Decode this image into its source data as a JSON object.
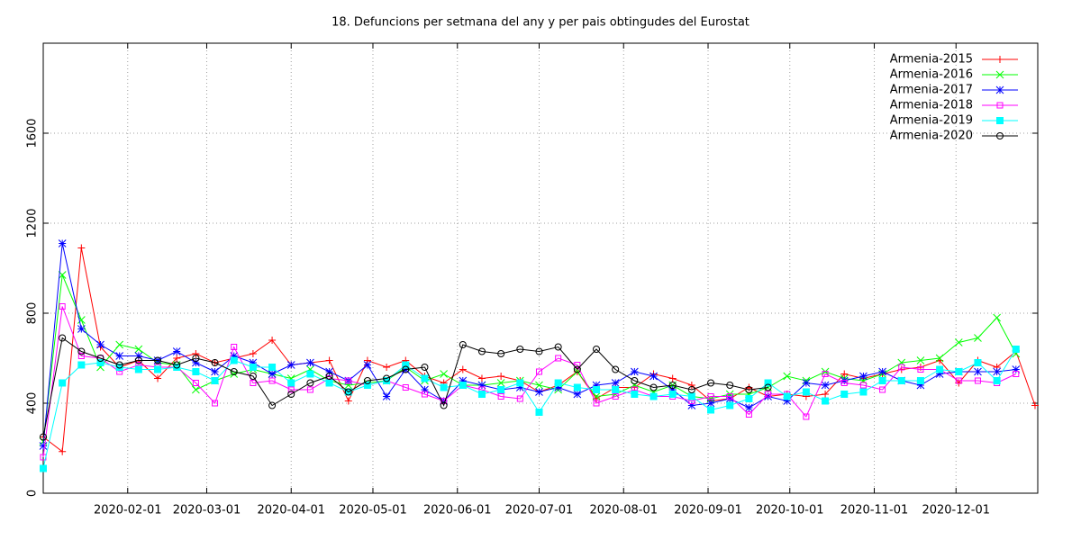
{
  "chart_data": {
    "type": "line",
    "title": "18. Defuncions per setmana del any y per pais obtingudes del Eurostat",
    "x": [
      "2020-01-01",
      "2020-01-08",
      "2020-01-15",
      "2020-01-22",
      "2020-01-29",
      "2020-02-05",
      "2020-02-12",
      "2020-02-19",
      "2020-02-26",
      "2020-03-04",
      "2020-03-11",
      "2020-03-18",
      "2020-03-25",
      "2020-04-01",
      "2020-04-08",
      "2020-04-15",
      "2020-04-22",
      "2020-04-29",
      "2020-05-06",
      "2020-05-13",
      "2020-05-20",
      "2020-05-27",
      "2020-06-03",
      "2020-06-10",
      "2020-06-17",
      "2020-06-24",
      "2020-07-01",
      "2020-07-08",
      "2020-07-15",
      "2020-07-22",
      "2020-07-29",
      "2020-08-05",
      "2020-08-12",
      "2020-08-19",
      "2020-08-26",
      "2020-09-02",
      "2020-09-09",
      "2020-09-16",
      "2020-09-23",
      "2020-09-30",
      "2020-10-07",
      "2020-10-14",
      "2020-10-21",
      "2020-10-28",
      "2020-11-04",
      "2020-11-11",
      "2020-11-18",
      "2020-11-25",
      "2020-12-02",
      "2020-12-09",
      "2020-12-16",
      "2020-12-23",
      "2020-12-30"
    ],
    "series": [
      {
        "name": "Armenia-2015",
        "color": "#ff0000",
        "marker": "plus",
        "values": [
          250,
          185,
          1090,
          650,
          560,
          590,
          510,
          600,
          620,
          580,
          600,
          620,
          680,
          570,
          580,
          590,
          410,
          590,
          560,
          590,
          520,
          490,
          550,
          510,
          520,
          500,
          450,
          480,
          540,
          420,
          470,
          470,
          530,
          510,
          480,
          410,
          420,
          470,
          430,
          440,
          430,
          440,
          530,
          510,
          530,
          550,
          560,
          590,
          490,
          590,
          560,
          630,
          390
        ]
      },
      {
        "name": "Armenia-2016",
        "color": "#00ff00",
        "marker": "cross",
        "values": [
          230,
          970,
          770,
          560,
          660,
          640,
          580,
          570,
          460,
          500,
          530,
          550,
          530,
          510,
          550,
          500,
          480,
          490,
          500,
          560,
          500,
          530,
          480,
          480,
          490,
          500,
          480,
          460,
          540,
          430,
          440,
          480,
          450,
          480,
          430,
          420,
          440,
          440,
          470,
          520,
          500,
          540,
          510,
          500,
          530,
          580,
          590,
          600,
          670,
          690,
          780,
          620,
          null
        ]
      },
      {
        "name": "Armenia-2017",
        "color": "#0000ff",
        "marker": "star",
        "values": [
          210,
          1110,
          730,
          660,
          610,
          610,
          590,
          630,
          580,
          540,
          610,
          580,
          530,
          570,
          580,
          540,
          500,
          570,
          430,
          550,
          460,
          410,
          500,
          480,
          460,
          470,
          450,
          470,
          440,
          480,
          490,
          540,
          520,
          460,
          390,
          400,
          420,
          380,
          430,
          410,
          490,
          480,
          500,
          520,
          540,
          500,
          480,
          530,
          540,
          540,
          540,
          550,
          null
        ]
      },
      {
        "name": "Armenia-2018",
        "color": "#ff00ff",
        "marker": "square",
        "values": [
          160,
          830,
          610,
          600,
          540,
          570,
          560,
          560,
          490,
          400,
          650,
          490,
          500,
          460,
          460,
          510,
          500,
          480,
          500,
          470,
          440,
          410,
          480,
          460,
          430,
          420,
          540,
          600,
          570,
          400,
          430,
          460,
          430,
          430,
          410,
          430,
          430,
          350,
          440,
          440,
          340,
          530,
          490,
          480,
          460,
          560,
          550,
          550,
          500,
          500,
          490,
          530,
          null
        ]
      },
      {
        "name": "Armenia-2019",
        "color": "#00ffff",
        "marker": "filled-square",
        "values": [
          110,
          490,
          570,
          580,
          560,
          550,
          550,
          560,
          540,
          500,
          590,
          560,
          560,
          490,
          530,
          490,
          450,
          480,
          500,
          570,
          510,
          470,
          480,
          440,
          460,
          490,
          360,
          490,
          470,
          460,
          460,
          440,
          430,
          440,
          430,
          370,
          390,
          420,
          490,
          430,
          450,
          410,
          440,
          450,
          500,
          500,
          500,
          550,
          540,
          580,
          500,
          640,
          null
        ]
      },
      {
        "name": "Armenia-2020",
        "color": "#000000",
        "marker": "circle",
        "values": [
          250,
          690,
          630,
          600,
          570,
          590,
          590,
          570,
          600,
          580,
          540,
          520,
          390,
          440,
          490,
          520,
          450,
          500,
          510,
          550,
          560,
          390,
          660,
          630,
          620,
          640,
          630,
          650,
          550,
          640,
          550,
          500,
          470,
          480,
          460,
          490,
          480,
          460,
          470,
          null,
          null,
          null,
          null,
          null,
          null,
          null,
          null,
          null,
          null,
          null,
          null,
          null,
          null
        ]
      }
    ],
    "xlim": [
      "2020-01-01",
      "2020-12-31"
    ],
    "xticks": [
      "2020-02-01",
      "2020-03-01",
      "2020-04-01",
      "2020-05-01",
      "2020-06-01",
      "2020-07-01",
      "2020-08-01",
      "2020-09-01",
      "2020-10-01",
      "2020-11-01",
      "2020-12-01"
    ],
    "ylim": [
      0,
      2000
    ],
    "yticks": [
      0,
      400,
      800,
      1200,
      1600
    ],
    "grid": true,
    "legend": "top-right"
  }
}
